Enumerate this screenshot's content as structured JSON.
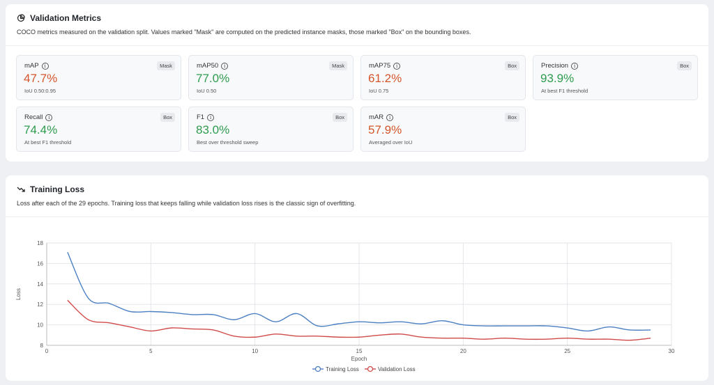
{
  "metrics": {
    "title": "Validation Metrics",
    "subtitle": "COCO metrics measured on the validation split. Values marked \"Mask\" are computed on the predicted instance masks, those marked \"Box\" on the bounding boxes.",
    "tiles": [
      {
        "label": "mAP",
        "badge": "Mask",
        "value": "47.7%",
        "note": "IoU 0.50:0.95",
        "status": "bad"
      },
      {
        "label": "mAP50",
        "badge": "Mask",
        "value": "77.0%",
        "note": "IoU 0.50",
        "status": "good"
      },
      {
        "label": "mAP75",
        "badge": "Box",
        "value": "61.2%",
        "note": "IoU 0.75",
        "status": "bad"
      },
      {
        "label": "Precision",
        "badge": "Box",
        "value": "93.9%",
        "note": "At best F1 threshold",
        "status": "good"
      },
      {
        "label": "Recall",
        "badge": "Box",
        "value": "74.4%",
        "note": "At best F1 threshold",
        "status": "good"
      },
      {
        "label": "F1",
        "badge": "Box",
        "value": "83.0%",
        "note": "Best over threshold sweep",
        "status": "good"
      },
      {
        "label": "mAR",
        "badge": "Box",
        "value": "57.9%",
        "note": "Averaged over IoU",
        "status": "bad"
      }
    ],
    "colors": {
      "good": "#2e9b4e",
      "bad": "#d4552b"
    }
  },
  "loss": {
    "title": "Training Loss",
    "subtitle": "Loss after each of the 29 epochs. Training loss that keeps falling while validation loss rises is the classic sign of overfitting."
  },
  "chart_data": {
    "type": "line",
    "title": "",
    "xlabel": "Epoch",
    "ylabel": "Loss",
    "xlim": [
      0,
      30
    ],
    "ylim": [
      8,
      18
    ],
    "xticks": [
      0,
      5,
      10,
      15,
      20,
      25,
      30
    ],
    "yticks": [
      8,
      10,
      12,
      14,
      16,
      18
    ],
    "grid": true,
    "legend": "bottom",
    "x": [
      1,
      2,
      3,
      4,
      5,
      6,
      7,
      8,
      9,
      10,
      11,
      12,
      13,
      14,
      15,
      16,
      17,
      18,
      19,
      20,
      21,
      22,
      23,
      24,
      25,
      26,
      27,
      28,
      29
    ],
    "series": [
      {
        "name": "Training Loss",
        "color": "#4a7fc1",
        "values": [
          17.1,
          12.6,
          12.1,
          11.3,
          11.3,
          11.2,
          11.0,
          11.0,
          10.5,
          11.1,
          10.3,
          11.1,
          9.9,
          10.1,
          10.3,
          10.2,
          10.3,
          10.1,
          10.4,
          10.0,
          9.9,
          9.9,
          9.9,
          9.9,
          9.7,
          9.4,
          9.8,
          9.5,
          9.5
        ]
      },
      {
        "name": "Validation Loss",
        "color": "#d04a4a",
        "values": [
          12.4,
          10.5,
          10.2,
          9.8,
          9.4,
          9.7,
          9.6,
          9.5,
          8.9,
          8.8,
          9.1,
          8.9,
          8.9,
          8.8,
          8.8,
          9.0,
          9.1,
          8.8,
          8.7,
          8.7,
          8.6,
          8.7,
          8.6,
          8.6,
          8.7,
          8.6,
          8.6,
          8.5,
          8.7
        ]
      }
    ]
  }
}
